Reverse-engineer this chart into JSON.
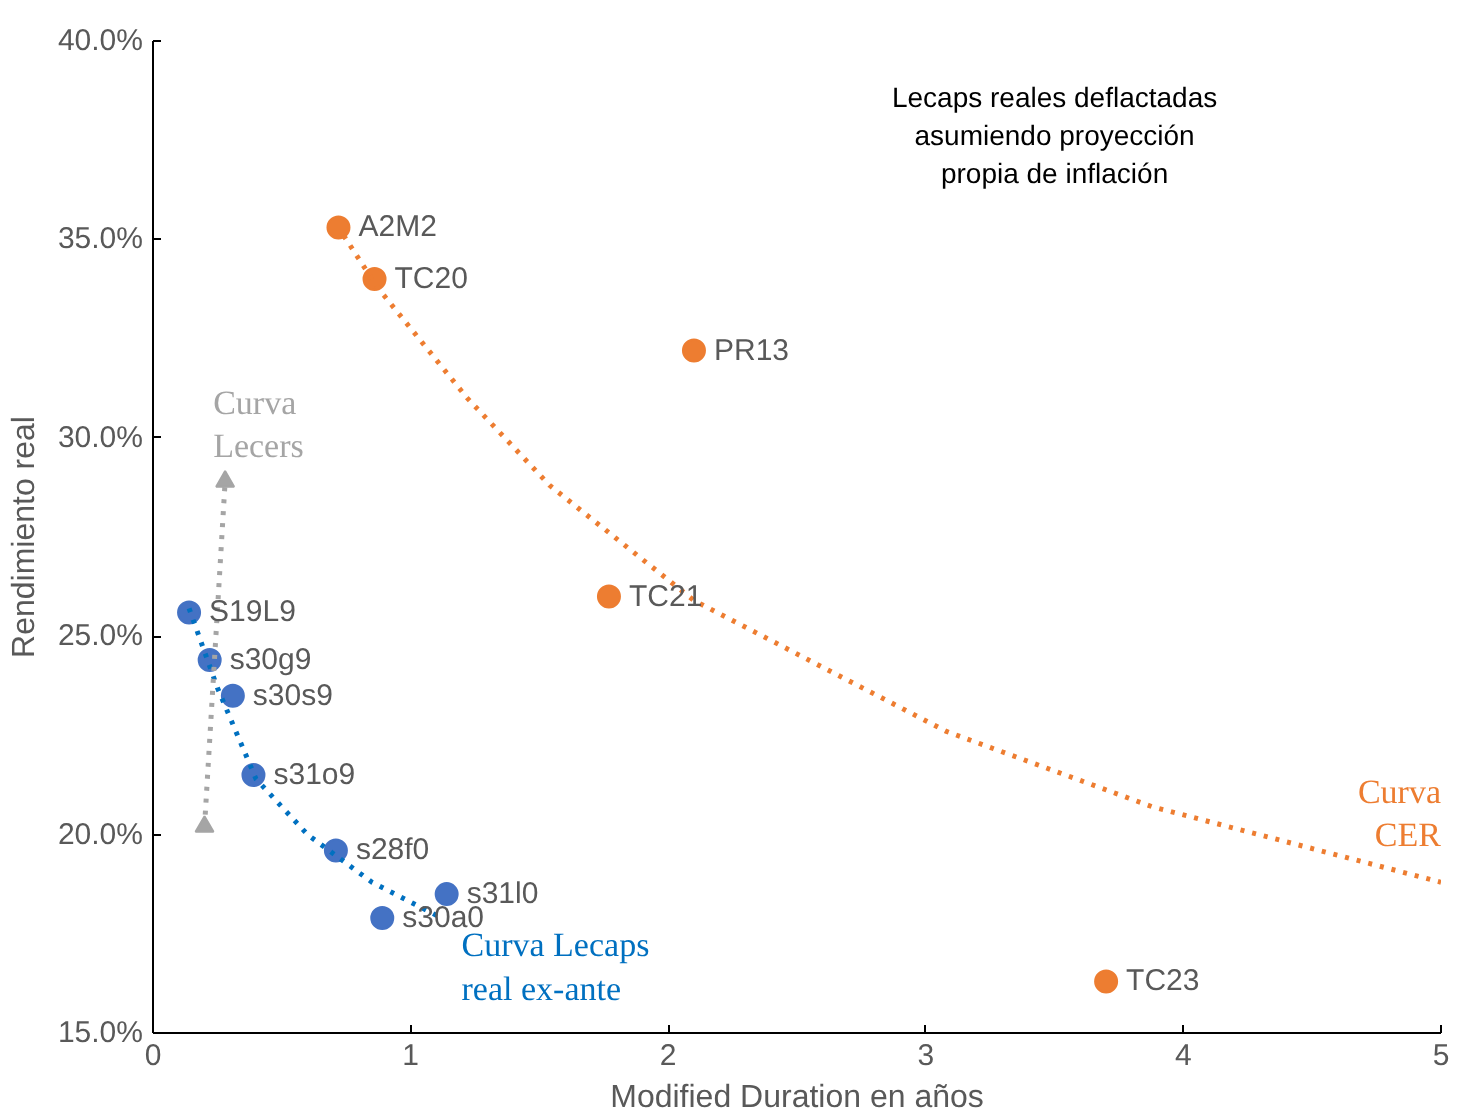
{
  "chart_data": {
    "type": "scatter",
    "xlabel": "Modified Duration en años",
    "ylabel": "Rendimiento real",
    "xlim": [
      0,
      5
    ],
    "ylim": [
      15,
      40
    ],
    "xticks": [
      0,
      1,
      2,
      3,
      4,
      5
    ],
    "yticks": [
      {
        "value": 15,
        "label": "15.0%"
      },
      {
        "value": 20,
        "label": "20.0%"
      },
      {
        "value": 25,
        "label": "25.0%"
      },
      {
        "value": 30,
        "label": "30.0%"
      },
      {
        "value": 35,
        "label": "35.0%"
      },
      {
        "value": 40,
        "label": "40.0%"
      }
    ],
    "grid": false,
    "marker": "circle",
    "series": [
      {
        "color": "#ed7d31",
        "x": [
          0.72,
          0.86,
          2.1,
          1.77,
          3.7
        ],
        "values": [
          35.3,
          34.0,
          32.2,
          26.0,
          16.3
        ]
      },
      {
        "color": "#4472c4",
        "x": [
          0.14,
          0.22,
          0.31,
          0.39,
          0.71,
          1.14,
          0.89
        ],
        "values": [
          25.6,
          24.4,
          23.5,
          21.5,
          19.6,
          18.5,
          17.9
        ]
      },
      {
        "type": "line",
        "name": "Curva\nCER",
        "color": "#ed7d31",
        "line_style": "dotted",
        "marker": "none",
        "x": [
          0.74,
          0.87,
          1.22,
          1.54,
          2.1,
          3.08,
          3.88,
          5.0
        ],
        "values": [
          35.1,
          33.8,
          31.0,
          28.8,
          25.9,
          22.6,
          20.7,
          18.8
        ]
      },
      {
        "type": "line",
        "name": "Curva Lecaps\nreal ex-ante",
        "color": "#0070c0",
        "line_style": "dotted",
        "marker": "none",
        "x": [
          0.14,
          0.25,
          0.4,
          0.6,
          0.85,
          1.12
        ],
        "values": [
          25.7,
          23.7,
          21.4,
          20.0,
          18.8,
          17.9
        ]
      },
      {
        "type": "line",
        "name": "Curva\nLecers",
        "color": "#a5a5a5",
        "line_style": "dotted",
        "marker": "triangle",
        "x": [
          0.2,
          0.28
        ],
        "values": [
          20.2,
          28.9
        ]
      }
    ],
    "annotations": [
      "Lecaps reales deflactadas\nasumiendo proyección\npropia de inflación",
      {
        "text": "A2M2",
        "x": 0.72,
        "y": 35.3
      },
      {
        "text": "TC20",
        "x": 0.86,
        "y": 34.0
      },
      {
        "text": "PR13",
        "x": 2.1,
        "y": 32.2
      },
      {
        "text": "TC21",
        "x": 1.77,
        "y": 26.0
      },
      {
        "text": "TC23",
        "x": 3.7,
        "y": 16.3
      },
      {
        "text": "S19L9",
        "x": 0.14,
        "y": 25.6
      },
      {
        "text": "s30g9",
        "x": 0.22,
        "y": 24.4
      },
      {
        "text": "s30s9",
        "x": 0.31,
        "y": 23.5
      },
      {
        "text": "s31o9",
        "x": 0.39,
        "y": 21.5
      },
      {
        "text": "s28f0",
        "x": 0.71,
        "y": 19.6
      },
      {
        "text": "s31l0",
        "x": 1.14,
        "y": 18.5
      },
      {
        "text": "s30a0",
        "x": 0.89,
        "y": 17.9
      }
    ]
  }
}
